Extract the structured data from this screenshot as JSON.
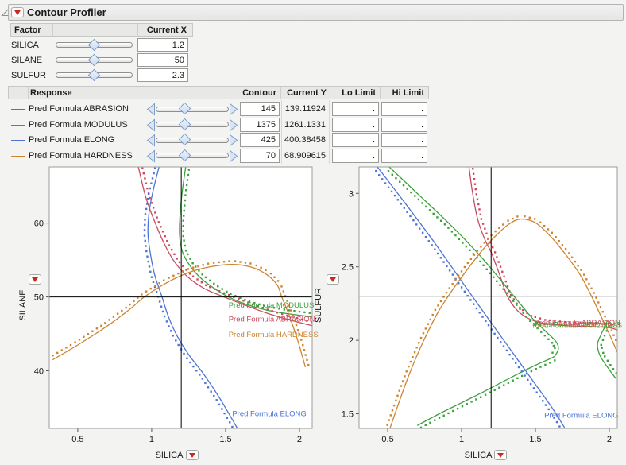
{
  "window": {
    "title": "Contour Profiler"
  },
  "factor_table": {
    "headers": {
      "factor": "Factor",
      "current_x": "Current X"
    },
    "rows": [
      {
        "name": "SILICA",
        "current_x": "1.2",
        "slider_pos": 0.5
      },
      {
        "name": "SILANE",
        "current_x": "50",
        "slider_pos": 0.5
      },
      {
        "name": "SULFUR",
        "current_x": "2.3",
        "slider_pos": 0.5
      }
    ]
  },
  "response_table": {
    "headers": {
      "response": "Response",
      "contour": "Contour",
      "current_y": "Current Y",
      "lo_limit": "Lo Limit",
      "hi_limit": "Hi Limit"
    },
    "rows": [
      {
        "name": "Pred Formula ABRASION",
        "color": "#cc4a5e",
        "contour": "145",
        "current_y": "139.11924",
        "lo_limit": ".",
        "hi_limit": ".",
        "slider_pos": 0.4
      },
      {
        "name": "Pred Formula MODULUS",
        "color": "#3ba13b",
        "contour": "1375",
        "current_y": "1261.1331",
        "lo_limit": ".",
        "hi_limit": ".",
        "slider_pos": 0.4
      },
      {
        "name": "Pred Formula ELONG",
        "color": "#4d74d6",
        "contour": "425",
        "current_y": "400.38458",
        "lo_limit": ".",
        "hi_limit": ".",
        "slider_pos": 0.4
      },
      {
        "name": "Pred Formula HARDNESS",
        "color": "#cd8430",
        "contour": "70",
        "current_y": "68.909615",
        "lo_limit": ".",
        "hi_limit": ".",
        "slider_pos": 0.4
      }
    ]
  },
  "colors": {
    "crosshair": "#000000",
    "ref_line": "#b22a2a",
    "red_triangle": "#c72a20"
  },
  "chart_data": [
    {
      "type": "line",
      "xlabel": "SILICA",
      "ylabel": "SILANE",
      "xlim": [
        0.307,
        2.086
      ],
      "ylim": [
        32.2,
        67.6
      ],
      "xticks": [
        0.5,
        1,
        1.5,
        2
      ],
      "yticks": [
        40,
        50,
        60
      ],
      "crosshair": {
        "x": 1.2,
        "y": 50
      },
      "series": [
        {
          "name": "Pred Formula ABRASION",
          "color": "#cc4a5e",
          "segments": [
            {
              "side": -1,
              "pts": [
                [
                  0.91,
                  67.6
                ],
                [
                  0.96,
                  63.5
                ],
                [
                  1.02,
                  60.2
                ],
                [
                  1.09,
                  57.0
                ],
                [
                  1.16,
                  54.6
                ],
                [
                  1.25,
                  52.6
                ],
                [
                  1.36,
                  51.1
                ],
                [
                  1.49,
                  50.0
                ],
                [
                  1.63,
                  48.9
                ],
                [
                  1.78,
                  47.8
                ],
                [
                  1.93,
                  46.9
                ],
                [
                  2.086,
                  46.1
                ]
              ]
            }
          ]
        },
        {
          "name": "Pred Formula MODULUS",
          "color": "#3ba13b",
          "segments": [
            {
              "side": -1,
              "pts": [
                [
                  1.23,
                  67.6
                ],
                [
                  1.205,
                  64.0
                ],
                [
                  1.19,
                  60.5
                ],
                [
                  1.19,
                  58.0
                ],
                [
                  1.21,
                  56.0
                ],
                [
                  1.26,
                  54.2
                ],
                [
                  1.33,
                  52.6
                ],
                [
                  1.42,
                  51.2
                ],
                [
                  1.52,
                  50.0
                ],
                [
                  1.64,
                  49.0
                ],
                [
                  1.78,
                  48.2
                ],
                [
                  1.93,
                  47.7
                ],
                [
                  2.086,
                  47.3
                ]
              ]
            }
          ]
        },
        {
          "name": "Pred Formula ELONG",
          "color": "#4d74d6",
          "segments": [
            {
              "side": 1,
              "pts": [
                [
                  1.05,
                  67.6
                ],
                [
                  1.005,
                  64.0
                ],
                [
                  0.98,
                  61.0
                ],
                [
                  0.975,
                  58.5
                ],
                [
                  0.99,
                  56.0
                ],
                [
                  1.02,
                  53.0
                ],
                [
                  1.07,
                  50.0
                ],
                [
                  1.11,
                  47.5
                ],
                [
                  1.17,
                  44.8
                ],
                [
                  1.25,
                  42.2
                ],
                [
                  1.35,
                  39.6
                ],
                [
                  1.46,
                  36.3
                ],
                [
                  1.58,
                  32.2
                ]
              ]
            }
          ]
        },
        {
          "name": "Pred Formula HARDNESS",
          "color": "#cd8430",
          "segments": [
            {
              "side": -1,
              "pts": [
                [
                  0.33,
                  41.5
                ],
                [
                  0.5,
                  43.5
                ],
                [
                  0.68,
                  45.8
                ],
                [
                  0.85,
                  48.3
                ],
                [
                  0.95,
                  50.0
                ],
                [
                  1.1,
                  51.9
                ],
                [
                  1.25,
                  53.3
                ],
                [
                  1.4,
                  54.1
                ],
                [
                  1.55,
                  54.4
                ],
                [
                  1.68,
                  54.0
                ],
                [
                  1.78,
                  53.0
                ],
                [
                  1.85,
                  51.6
                ],
                [
                  1.88,
                  50.0
                ],
                [
                  1.93,
                  47.5
                ],
                [
                  1.99,
                  44.0
                ],
                [
                  2.04,
                  40.5
                ]
              ]
            }
          ]
        }
      ],
      "labels": [
        {
          "text": "Pred Formula MODULUS",
          "x": 1.52,
          "y": 48.9,
          "color": "#3ba13b"
        },
        {
          "text": "Pred Formula ABRASION",
          "x": 1.52,
          "y": 47.0,
          "color": "#cc4a5e"
        },
        {
          "text": "Pred Formula HARDNESS",
          "x": 1.52,
          "y": 44.9,
          "color": "#cd8430"
        },
        {
          "text": "Pred Formula ELONG",
          "x": 1.545,
          "y": 34.2,
          "color": "#4d74d6"
        }
      ]
    },
    {
      "type": "line",
      "xlabel": "SILICA",
      "ylabel": "SULFUR",
      "xlim": [
        0.306,
        2.054
      ],
      "ylim": [
        1.4,
        3.18
      ],
      "xticks": [
        0.5,
        1,
        1.5,
        2
      ],
      "yticks": [
        1.5,
        2,
        2.5,
        3
      ],
      "crosshair": {
        "x": 1.2,
        "y": 2.3
      },
      "series": [
        {
          "name": "Pred Formula ABRASION",
          "color": "#cc4a5e",
          "segments": [
            {
              "side": -1,
              "pts": [
                [
                  1.05,
                  3.18
                ],
                [
                  1.075,
                  3.0
                ],
                [
                  1.11,
                  2.82
                ],
                [
                  1.16,
                  2.68
                ],
                [
                  1.2,
                  2.6
                ],
                [
                  1.26,
                  2.44
                ],
                [
                  1.31,
                  2.3
                ],
                [
                  1.38,
                  2.2
                ],
                [
                  1.46,
                  2.145
                ],
                [
                  1.56,
                  2.115
                ],
                [
                  1.7,
                  2.1
                ],
                [
                  1.85,
                  2.095
                ],
                [
                  2.0,
                  2.085
                ],
                [
                  2.054,
                  2.07
                ]
              ]
            }
          ]
        },
        {
          "name": "Pred Formula MODULUS",
          "color": "#3ba13b",
          "segments": [
            {
              "side": 1,
              "pts": [
                [
                  0.51,
                  3.18
                ],
                [
                  0.7,
                  3.0
                ],
                [
                  0.92,
                  2.79
                ],
                [
                  1.13,
                  2.57
                ],
                [
                  1.355,
                  2.3
                ],
                [
                  1.47,
                  2.16
                ],
                [
                  1.57,
                  2.06
                ],
                [
                  1.64,
                  1.99
                ],
                [
                  1.655,
                  1.94
                ],
                [
                  1.63,
                  1.89
                ]
              ]
            },
            {
              "side": 1,
              "pts": [
                [
                  0.7,
                  1.42
                ],
                [
                  0.85,
                  1.5
                ],
                [
                  1.0,
                  1.575
                ],
                [
                  1.15,
                  1.65
                ],
                [
                  1.35,
                  1.755
                ],
                [
                  1.5,
                  1.83
                ],
                [
                  1.6,
                  1.875
                ],
                [
                  1.63,
                  1.89
                ]
              ]
            },
            {
              "side": -1,
              "pts": [
                [
                  1.985,
                  2.12
                ],
                [
                  1.945,
                  2.04
                ],
                [
                  1.92,
                  1.97
                ],
                [
                  1.94,
                  1.89
                ],
                [
                  2.0,
                  1.8
                ],
                [
                  2.045,
                  1.74
                ]
              ]
            }
          ]
        },
        {
          "name": "Pred Formula ELONG",
          "color": "#4d74d6",
          "segments": [
            {
              "side": 1,
              "pts": [
                [
                  0.43,
                  3.18
                ],
                [
                  0.62,
                  2.93
                ],
                [
                  0.82,
                  2.66
                ],
                [
                  1.03,
                  2.36
                ],
                [
                  1.2,
                  2.12
                ],
                [
                  1.35,
                  1.91
                ],
                [
                  1.5,
                  1.7
                ],
                [
                  1.62,
                  1.53
                ],
                [
                  1.7,
                  1.4
                ]
              ]
            }
          ]
        },
        {
          "name": "Pred Formula HARDNESS",
          "color": "#cd8430",
          "segments": [
            {
              "side": -1,
              "pts": [
                [
                  0.515,
                  1.4
                ],
                [
                  0.57,
                  1.56
                ],
                [
                  0.65,
                  1.78
                ],
                [
                  0.74,
                  1.99
                ],
                [
                  0.84,
                  2.19
                ],
                [
                  0.93,
                  2.33
                ],
                [
                  1.03,
                  2.47
                ],
                [
                  1.13,
                  2.6
                ],
                [
                  1.23,
                  2.71
                ],
                [
                  1.32,
                  2.79
                ],
                [
                  1.4,
                  2.825
                ],
                [
                  1.5,
                  2.8
                ],
                [
                  1.6,
                  2.71
                ],
                [
                  1.7,
                  2.59
                ],
                [
                  1.8,
                  2.45
                ],
                [
                  1.88,
                  2.3
                ],
                [
                  1.95,
                  2.15
                ],
                [
                  2.01,
                  2.02
                ],
                [
                  2.054,
                  1.92
                ]
              ]
            }
          ]
        }
      ],
      "labels": [
        {
          "text": "Pred Formula HARDNESS",
          "x": 1.48,
          "y": 2.1,
          "color": "#cd8430"
        },
        {
          "text": "Pred Formula MODULUS",
          "x": 1.495,
          "y": 2.105,
          "color": "#3ba13b"
        },
        {
          "text": "Pred Formula ABRASION",
          "x": 1.49,
          "y": 2.12,
          "color": "#cc4a5e"
        },
        {
          "text": "Pred Formula ELONG",
          "x": 1.56,
          "y": 1.49,
          "color": "#4d74d6"
        }
      ]
    }
  ]
}
